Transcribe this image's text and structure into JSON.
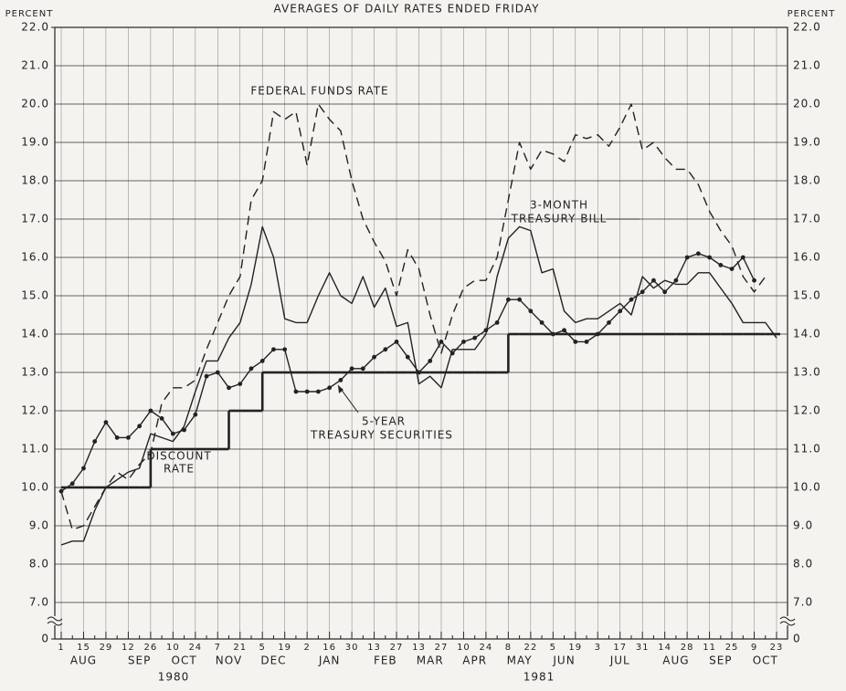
{
  "chart_data": {
    "type": "line",
    "title": "AVERAGES OF DAILY RATES ENDED FRIDAY",
    "y_label": "PERCENT",
    "y2_label": "PERCENT",
    "annotations": [
      "FEDERAL FUNDS RATE",
      "3-MONTH",
      "TREASURY BILL",
      "5-YEAR",
      "TREASURY SECURITIES",
      "DISCOUNT",
      "RATE"
    ],
    "categories": [
      "1",
      null,
      "15",
      null,
      "29",
      null,
      "12",
      null,
      "26",
      null,
      "10",
      null,
      "24",
      null,
      "7",
      null,
      "21",
      null,
      "5",
      null,
      "19",
      null,
      "2",
      null,
      "16",
      null,
      "30",
      null,
      "13",
      null,
      "27",
      null,
      "13",
      null,
      "27",
      null,
      "10",
      null,
      "24",
      null,
      "8",
      null,
      "22",
      null,
      "5",
      null,
      "19",
      null,
      "3",
      null,
      "17",
      null,
      "31",
      null,
      "14",
      null,
      "28",
      null,
      "11",
      null,
      "25",
      null,
      "9",
      null,
      "23"
    ],
    "months": [
      "AUG",
      "SEP",
      "OCT",
      "NOV",
      "DEC",
      "JAN",
      "FEB",
      "MAR",
      "APR",
      "MAY",
      "JUN",
      "JUL",
      "AUG",
      "SEP",
      "OCT"
    ],
    "years": [
      "1980",
      "1981"
    ],
    "ylim": [
      0,
      22
    ],
    "yticks": [
      0,
      {
        "value": 7,
        "label": "7.0"
      },
      {
        "value": 8,
        "label": "8.0"
      },
      {
        "value": 9,
        "label": "9.0"
      },
      {
        "value": 10,
        "label": "10.0"
      },
      {
        "value": 11,
        "label": "11.0"
      },
      {
        "value": 12,
        "label": "12.0"
      },
      {
        "value": 13,
        "label": "13.0"
      },
      {
        "value": 14,
        "label": "14.0"
      },
      {
        "value": 15,
        "label": "15.0"
      },
      {
        "value": 16,
        "label": "16.0"
      },
      {
        "value": 17,
        "label": "17.0"
      },
      {
        "value": 18,
        "label": "18.0"
      },
      {
        "value": 19,
        "label": "19.0"
      },
      {
        "value": 20,
        "label": "20.0"
      },
      {
        "value": 21,
        "label": "21.0"
      },
      {
        "value": 22,
        "label": "22.0"
      }
    ],
    "axis_break": true,
    "grid": true,
    "series": [
      {
        "name": "Federal funds rate",
        "color": "#222222",
        "style": "dashed",
        "values": [
          9.9,
          8.9,
          9.0,
          9.5,
          10.0,
          10.4,
          10.2,
          10.6,
          10.9,
          12.2,
          12.6,
          12.6,
          12.8,
          13.6,
          14.3,
          15.0,
          15.5,
          17.5,
          18.0,
          19.8,
          19.6,
          19.8,
          18.4,
          20.0,
          19.6,
          19.3,
          18.0,
          17.0,
          16.4,
          15.9,
          15.0,
          16.2,
          15.7,
          14.5,
          13.5,
          14.5,
          15.2,
          15.4,
          15.4,
          16.0,
          17.5,
          19.0,
          18.3,
          18.8,
          18.7,
          18.5,
          19.2,
          19.1,
          19.2,
          18.9,
          19.4,
          20.0,
          18.8,
          19.0,
          18.6,
          18.3,
          18.3,
          17.9,
          17.2,
          16.7,
          16.3,
          15.5,
          15.1,
          15.5,
          null
        ]
      },
      {
        "name": "3-month Treasury bill",
        "color": "#222222",
        "style": "solid",
        "values": [
          8.5,
          8.6,
          8.6,
          9.4,
          10.0,
          10.2,
          10.4,
          10.5,
          11.4,
          11.3,
          11.2,
          11.6,
          12.5,
          13.3,
          13.3,
          13.9,
          14.3,
          15.3,
          16.8,
          16.0,
          14.4,
          14.3,
          14.3,
          15.0,
          15.6,
          15.0,
          14.8,
          15.5,
          14.7,
          15.2,
          14.2,
          14.3,
          12.7,
          12.9,
          12.6,
          13.6,
          13.6,
          13.6,
          14.0,
          15.5,
          16.5,
          16.8,
          16.7,
          15.6,
          15.7,
          14.6,
          14.3,
          14.4,
          14.4,
          14.6,
          14.8,
          14.5,
          15.5,
          15.2,
          15.4,
          15.3,
          15.3,
          15.6,
          15.6,
          15.2,
          14.8,
          14.3,
          14.3,
          14.3,
          13.9
        ]
      },
      {
        "name": "5-year Treasury securities",
        "color": "#222222",
        "style": "markers",
        "values": [
          9.9,
          10.1,
          10.5,
          11.2,
          11.7,
          11.3,
          11.3,
          11.6,
          12.0,
          11.8,
          11.4,
          11.5,
          11.9,
          12.9,
          13.0,
          12.6,
          12.7,
          13.1,
          13.3,
          13.6,
          13.6,
          12.5,
          12.5,
          12.5,
          12.6,
          12.8,
          13.1,
          13.1,
          13.4,
          13.6,
          13.8,
          13.4,
          13.0,
          13.3,
          13.8,
          13.5,
          13.8,
          13.9,
          14.1,
          14.3,
          14.9,
          14.9,
          14.6,
          14.3,
          14.0,
          14.1,
          13.8,
          13.8,
          14.0,
          14.3,
          14.6,
          14.9,
          15.1,
          15.4,
          15.1,
          15.4,
          16.0,
          16.1,
          16.0,
          15.8,
          15.7,
          16.0,
          15.4,
          null,
          null
        ]
      },
      {
        "name": "Discount rate",
        "color": "#222222",
        "style": "step",
        "values": [
          10,
          10,
          10,
          10,
          10,
          10,
          10,
          10,
          11,
          11,
          11,
          11,
          11,
          11,
          11,
          12,
          12,
          12,
          13,
          13,
          13,
          13,
          13,
          13,
          13,
          13,
          13,
          13,
          13,
          13,
          13,
          13,
          13,
          13,
          13,
          13,
          13,
          13,
          13,
          13,
          14,
          14,
          14,
          14,
          14,
          14,
          14,
          14,
          14,
          14,
          14,
          14,
          14,
          14,
          14,
          14,
          14,
          14,
          14,
          14,
          14,
          14,
          14,
          14,
          14
        ]
      }
    ]
  }
}
